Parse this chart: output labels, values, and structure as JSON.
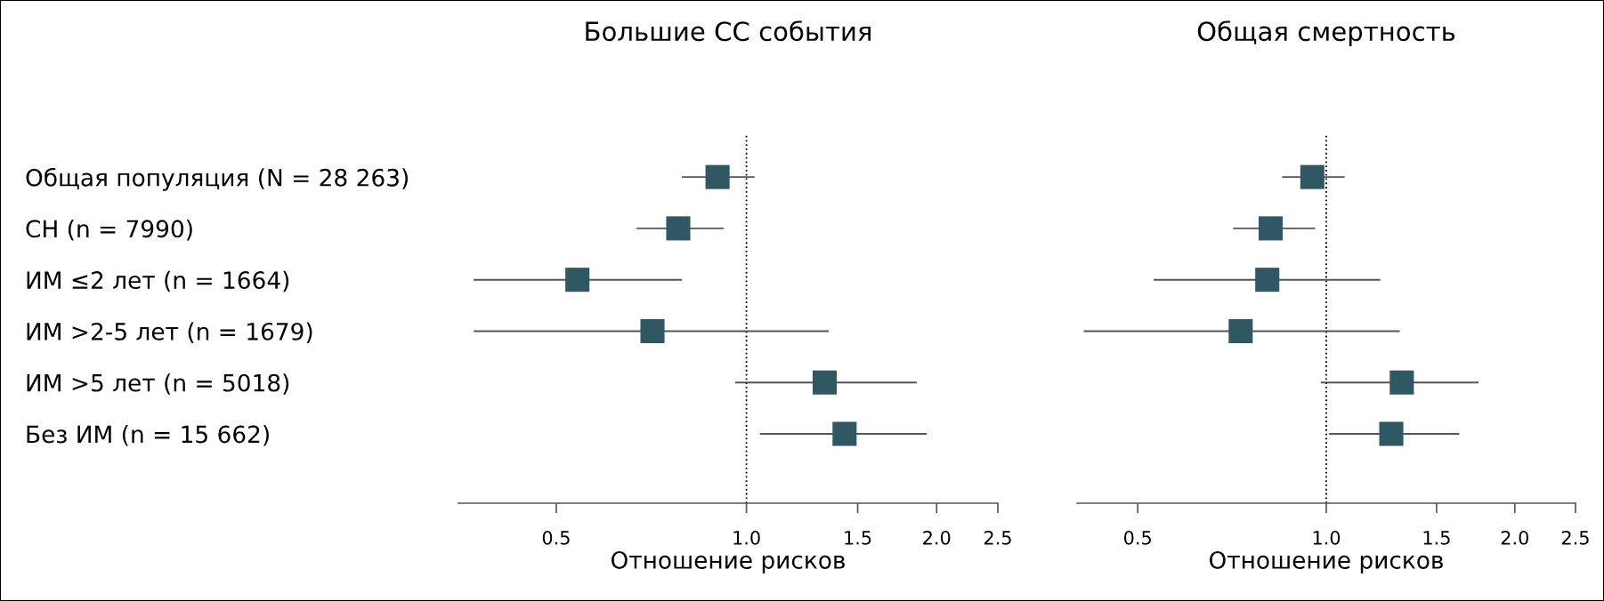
{
  "chart_data": [
    {
      "type": "scatter",
      "title": "Большие СС события",
      "xlabel": "Отношение рисков",
      "orientation": "horizontal",
      "log": "x",
      "marker": "square",
      "grid": false,
      "categories": [
        "Общая популяция (N = 28 263)",
        "СН (n = 7990)",
        "ИМ ≤2 лет (n = 1664)",
        "ИМ >2-5 лет (n = 1679)",
        "ИМ >5 лет (n = 5018)",
        "Без ИМ (n = 15 662)"
      ],
      "color": "#2f5764",
      "values": [
        0.9,
        0.78,
        0.54,
        0.71,
        1.33,
        1.43
      ],
      "errors": [
        [
          0.79,
          1.03
        ],
        [
          0.67,
          0.92
        ],
        [
          0.37,
          0.79
        ],
        [
          0.37,
          1.35
        ],
        [
          0.96,
          1.86
        ],
        [
          1.05,
          1.93
        ]
      ],
      "xlim": [
        0.35,
        2.5
      ],
      "xticks": [
        {
          "value": 0.5,
          "label": "0.5"
        },
        {
          "value": 1.0,
          "label": "1.0"
        },
        {
          "value": 1.5,
          "label": "1.5"
        },
        {
          "value": 2.0,
          "label": "2.0"
        },
        {
          "value": 2.5,
          "label": "2.5"
        }
      ],
      "ref_lines": [
        {
          "axis": "x",
          "value": 1.0,
          "line_style": "dotted",
          "color": "#000000"
        }
      ]
    },
    {
      "type": "scatter",
      "title": "Общая смертность",
      "xlabel": "Отношение рисков",
      "orientation": "horizontal",
      "log": "x",
      "marker": "square",
      "grid": false,
      "tick_labels": "x",
      "categories": [
        null,
        null,
        null,
        null,
        null,
        null
      ],
      "color": "#2f5764",
      "values": [
        0.95,
        0.815,
        0.805,
        0.73,
        1.32,
        1.27
      ],
      "errors": [
        [
          0.85,
          1.07
        ],
        [
          0.71,
          0.96
        ],
        [
          0.53,
          1.22
        ],
        [
          0.41,
          1.31
        ],
        [
          0.98,
          1.75
        ],
        [
          1.01,
          1.63
        ]
      ],
      "xlim": [
        0.4,
        2.5
      ],
      "xticks": [
        {
          "value": 0.5,
          "label": "0.5"
        },
        {
          "value": 1.0,
          "label": "1.0"
        },
        {
          "value": 1.5,
          "label": "1.5"
        },
        {
          "value": 2.0,
          "label": "2.0"
        },
        {
          "value": 2.5,
          "label": "2.5"
        }
      ],
      "ref_lines": [
        {
          "axis": "x",
          "value": 1.0,
          "line_style": "dotted",
          "color": "#000000"
        }
      ]
    }
  ]
}
